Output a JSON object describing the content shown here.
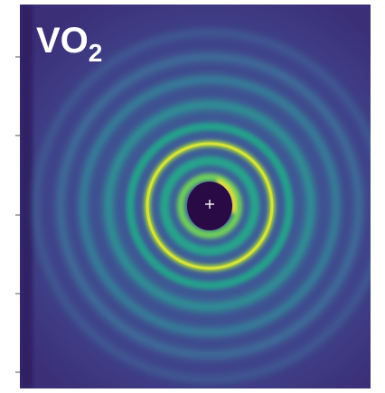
{
  "label": {
    "text": "VO",
    "subscript": "2"
  }
}
